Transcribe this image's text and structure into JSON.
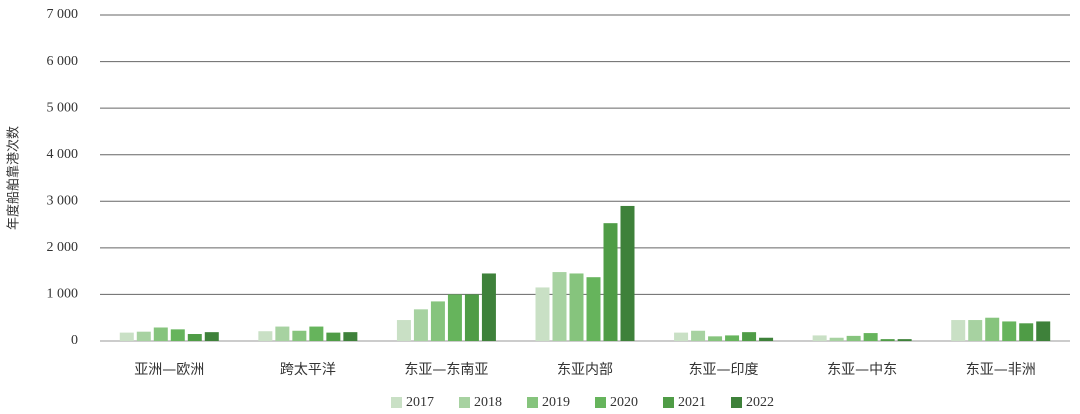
{
  "chart_data": {
    "type": "bar",
    "y_label": "年度船舶靠港次数",
    "categories": [
      "亚洲—欧洲",
      "跨太平洋",
      "东亚—东南亚",
      "东亚内部",
      "东亚—印度",
      "东亚—中东",
      "东亚—非洲"
    ],
    "series": [
      {
        "name": "2017",
        "color": "#c9e0c5",
        "values": [
          180,
          210,
          450,
          1150,
          180,
          120,
          450
        ]
      },
      {
        "name": "2018",
        "color": "#a7d2a1",
        "values": [
          200,
          310,
          680,
          1480,
          220,
          70,
          450
        ]
      },
      {
        "name": "2019",
        "color": "#86c47d",
        "values": [
          290,
          220,
          850,
          1450,
          100,
          110,
          500
        ]
      },
      {
        "name": "2020",
        "color": "#66b45c",
        "values": [
          250,
          310,
          1000,
          1370,
          120,
          170,
          420
        ]
      },
      {
        "name": "2021",
        "color": "#4f9c46",
        "values": [
          150,
          180,
          1000,
          2530,
          190,
          40,
          380
        ]
      },
      {
        "name": "2022",
        "color": "#3e813a",
        "values": [
          190,
          190,
          1450,
          2900,
          70,
          40,
          420
        ]
      }
    ],
    "ylim": [
      0,
      7000
    ],
    "yticks": [
      0,
      {
        "value": 1000,
        "label": "1 000"
      },
      {
        "value": 2000,
        "label": "2 000"
      },
      {
        "value": 3000,
        "label": "3 000"
      },
      {
        "value": 4000,
        "label": "4 000"
      },
      {
        "value": 5000,
        "label": "5 000"
      },
      {
        "value": 6000,
        "label": "6 000"
      },
      {
        "value": 7000,
        "label": "7 000"
      }
    ],
    "grid": true
  }
}
